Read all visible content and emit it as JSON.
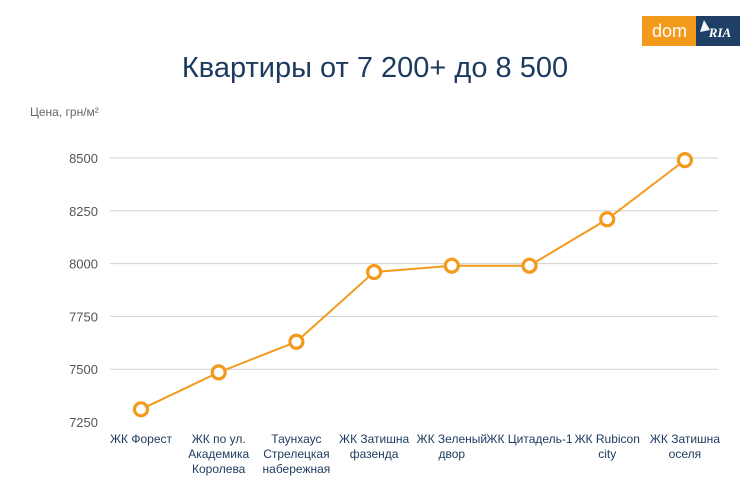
{
  "brand": {
    "logo_dom": "dom",
    "logo_ria": "RIA",
    "dom_color": "#f39a1d",
    "ria_color": "#1f3f66"
  },
  "title": "Квартиры от 7 200+ до 8 500",
  "chart_data": {
    "type": "line",
    "title": "Квартиры от 7 200+ до 8 500",
    "ylabel": "Цена, грн/м²",
    "xlabel": "",
    "categories": [
      [
        "ЖК Форест"
      ],
      [
        "ЖК по ул.",
        "Академика",
        "Королева"
      ],
      [
        "Таунхаус",
        "Стрелецкая",
        "набережная"
      ],
      [
        "ЖК Затишна",
        "фазенда"
      ],
      [
        "ЖК Зеленый",
        "двор"
      ],
      [
        "ЖК Цитадель-1"
      ],
      [
        "ЖК Rubicon",
        "city"
      ],
      [
        "ЖК Затишна",
        "оселя"
      ]
    ],
    "series": [
      {
        "values": [
          7310,
          7485,
          7630,
          7960,
          7990,
          7990,
          8210,
          8490
        ],
        "color": "#f39a1d"
      }
    ],
    "yticks": [
      7250,
      7500,
      7750,
      8000,
      8250,
      8500
    ],
    "ylim": [
      7250,
      8500
    ],
    "grid": true,
    "legend": "none"
  }
}
